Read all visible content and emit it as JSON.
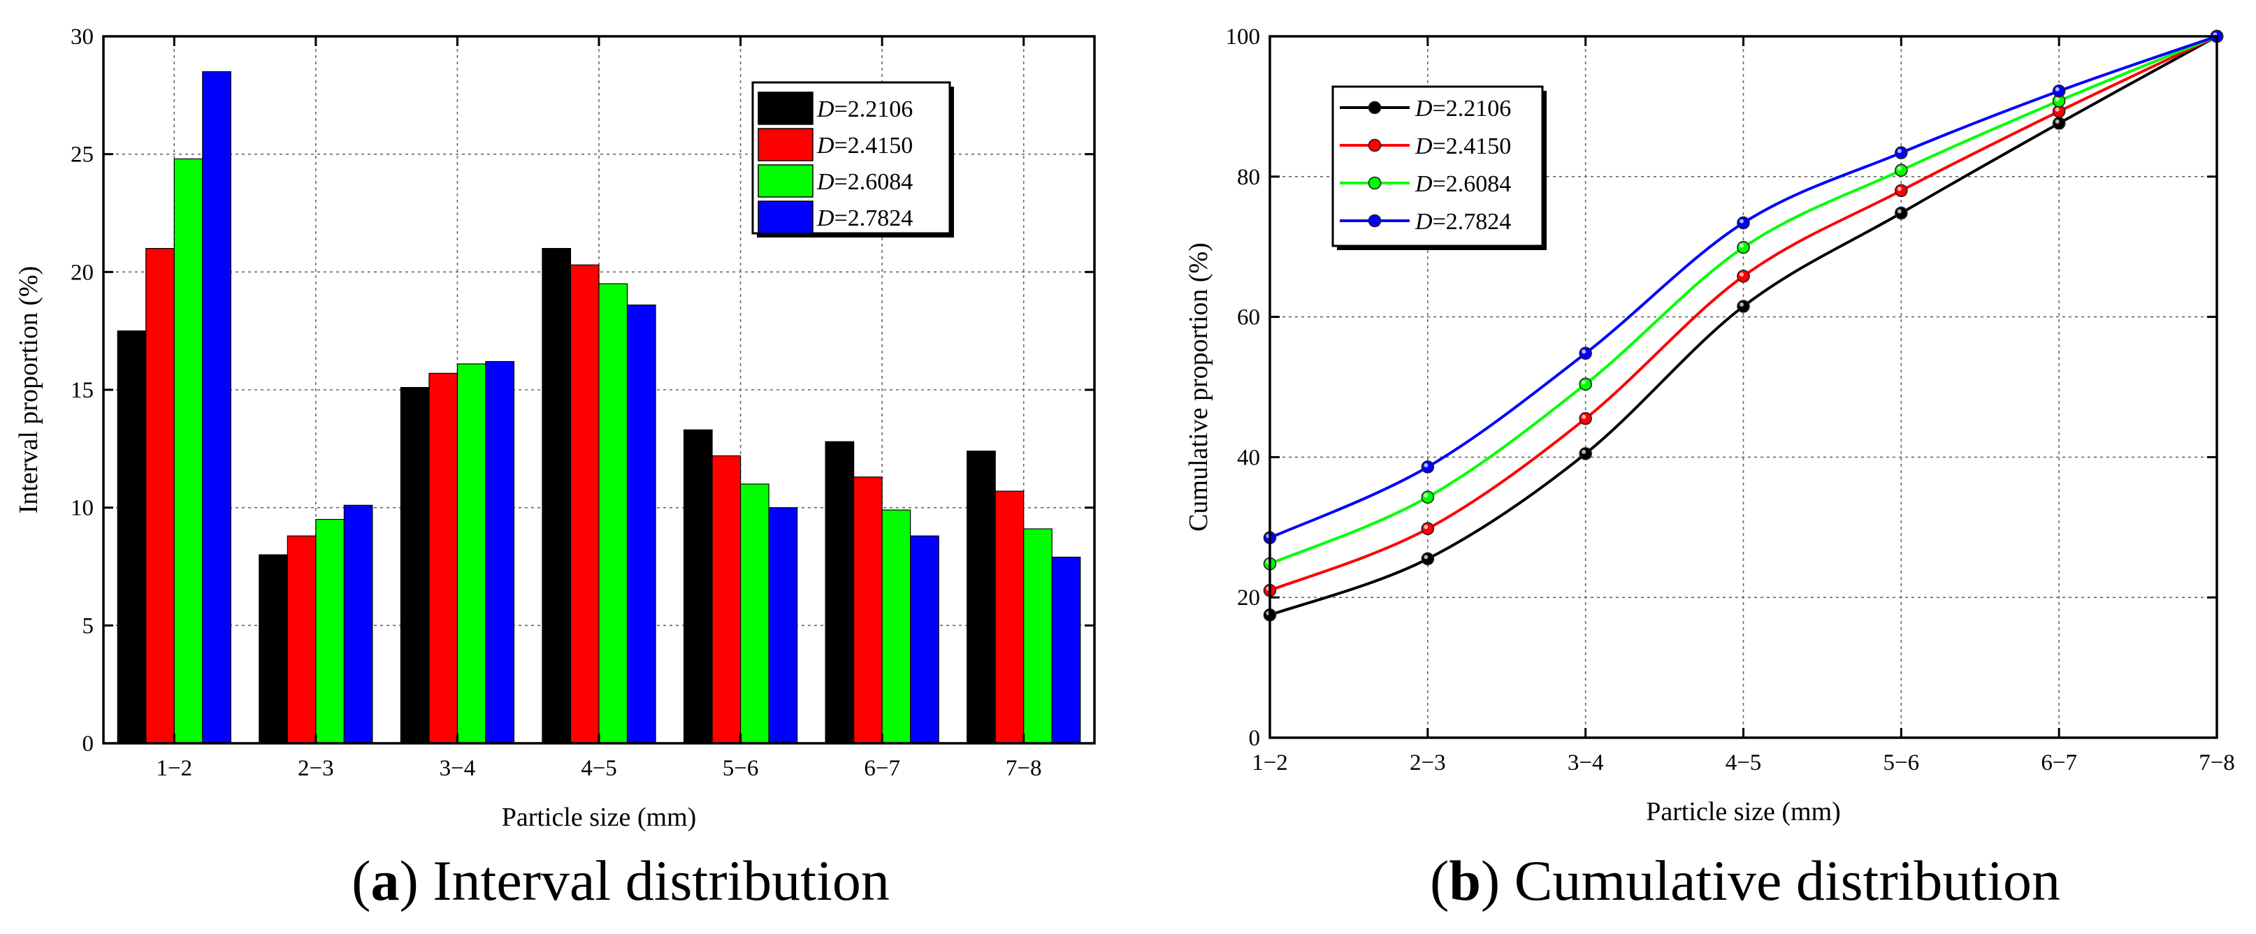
{
  "charts": [
    {
      "id": "a",
      "type": "bar",
      "caption_label": "a",
      "caption_text": "Interval distribution",
      "xlabel": "Particle size (mm)",
      "ylabel": "Interval proportion (%)",
      "ylim": [
        0,
        30
      ],
      "yticks": [
        "0",
        "5",
        "10",
        "15",
        "20",
        "25",
        "30"
      ],
      "categories": [
        "1−2",
        "2−3",
        "3−4",
        "4−5",
        "5−6",
        "6−7",
        "7−8"
      ],
      "legend_position": "top-right",
      "series": [
        {
          "label_prefix": "D",
          "label_value": "=2.2106",
          "color": "#000000",
          "values": [
            17.5,
            8.0,
            15.1,
            21.0,
            13.3,
            12.8,
            12.4
          ]
        },
        {
          "label_prefix": "D",
          "label_value": "=2.4150",
          "color": "#ff0000",
          "values": [
            21.0,
            8.8,
            15.7,
            20.3,
            12.2,
            11.3,
            10.7
          ]
        },
        {
          "label_prefix": "D",
          "label_value": "=2.6084",
          "color": "#00ff00",
          "values": [
            24.8,
            9.5,
            16.1,
            19.5,
            11.0,
            9.9,
            9.1
          ]
        },
        {
          "label_prefix": "D",
          "label_value": "=2.7824",
          "color": "#0000ff",
          "values": [
            28.5,
            10.1,
            16.2,
            18.6,
            10.0,
            8.8,
            7.9
          ]
        }
      ]
    },
    {
      "id": "b",
      "type": "line",
      "caption_label": "b",
      "caption_text": "Cumulative distribution",
      "xlabel": "Particle size (mm)",
      "ylabel": "Cumulative proportion (%)",
      "ylim": [
        0,
        100
      ],
      "yticks": [
        "0",
        "20",
        "40",
        "60",
        "80",
        "100"
      ],
      "categories": [
        "1−2",
        "2−3",
        "3−4",
        "4−5",
        "5−6",
        "6−7",
        "7−8"
      ],
      "legend_position": "top-left",
      "series": [
        {
          "label_prefix": "D",
          "label_value": "=2.2106",
          "color": "#000000",
          "values": [
            17.5,
            25.5,
            40.5,
            61.5,
            74.8,
            87.6,
            100
          ]
        },
        {
          "label_prefix": "D",
          "label_value": "=2.4150",
          "color": "#ff0000",
          "values": [
            21.0,
            29.8,
            45.5,
            65.8,
            78.0,
            89.3,
            100
          ]
        },
        {
          "label_prefix": "D",
          "label_value": "=2.6084",
          "color": "#00ff00",
          "values": [
            24.8,
            34.3,
            50.4,
            69.9,
            80.9,
            90.8,
            100
          ]
        },
        {
          "label_prefix": "D",
          "label_value": "=2.7824",
          "color": "#0000ff",
          "values": [
            28.5,
            38.6,
            54.8,
            73.4,
            83.4,
            92.2,
            100
          ]
        }
      ]
    }
  ],
  "chart_data": [
    {
      "type": "bar",
      "title": "(a) Interval distribution",
      "xlabel": "Particle size (mm)",
      "ylabel": "Interval proportion (%)",
      "ylim": [
        0,
        30
      ],
      "categories": [
        "1−2",
        "2−3",
        "3−4",
        "4−5",
        "5−6",
        "6−7",
        "7−8"
      ],
      "series": [
        {
          "name": "D=2.2106",
          "values": [
            17.5,
            8.0,
            15.1,
            21.0,
            13.3,
            12.8,
            12.4
          ]
        },
        {
          "name": "D=2.4150",
          "values": [
            21.0,
            8.8,
            15.7,
            20.3,
            12.2,
            11.3,
            10.7
          ]
        },
        {
          "name": "D=2.6084",
          "values": [
            24.8,
            9.5,
            16.1,
            19.5,
            11.0,
            9.9,
            9.1
          ]
        },
        {
          "name": "D=2.7824",
          "values": [
            28.5,
            10.1,
            16.2,
            18.6,
            10.0,
            8.8,
            7.9
          ]
        }
      ]
    },
    {
      "type": "line",
      "title": "(b) Cumulative distribution",
      "xlabel": "Particle size (mm)",
      "ylabel": "Cumulative proportion (%)",
      "ylim": [
        0,
        100
      ],
      "categories": [
        "1−2",
        "2−3",
        "3−4",
        "4−5",
        "5−6",
        "6−7",
        "7−8"
      ],
      "series": [
        {
          "name": "D=2.2106",
          "values": [
            17.5,
            25.5,
            40.5,
            61.5,
            74.8,
            87.6,
            100
          ]
        },
        {
          "name": "D=2.4150",
          "values": [
            21.0,
            29.8,
            45.5,
            65.8,
            78.0,
            89.3,
            100
          ]
        },
        {
          "name": "D=2.6084",
          "values": [
            24.8,
            34.3,
            50.4,
            69.9,
            80.9,
            90.8,
            100
          ]
        },
        {
          "name": "D=2.7824",
          "values": [
            28.5,
            38.6,
            54.8,
            73.4,
            83.4,
            92.2,
            100
          ]
        }
      ]
    }
  ]
}
